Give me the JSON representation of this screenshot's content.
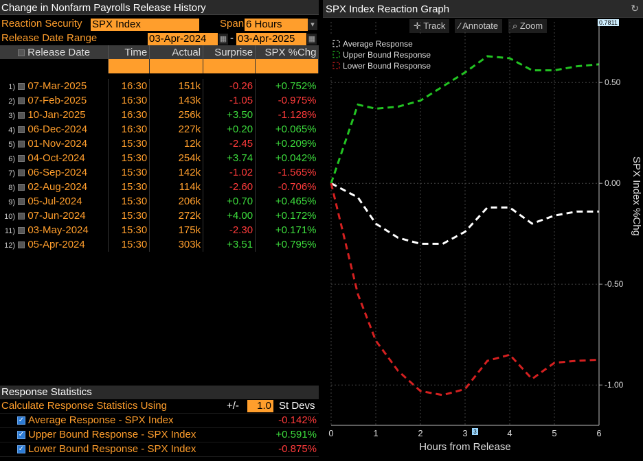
{
  "left": {
    "title": "Change in Nonfarm Payrolls Release History",
    "security_label": "Reaction Security",
    "security_value": "SPX Index",
    "span_label": "Span",
    "span_value": "6 Hours",
    "date_range_label": "Release Date Range",
    "date_from": "03-Apr-2024",
    "date_sep": "-",
    "date_to": "03-Apr-2025",
    "columns": [
      "Release Date",
      "Time",
      "Actual",
      "Surprise",
      "SPX %Chg"
    ],
    "rows": [
      {
        "idx": "1)",
        "date": "07-Mar-2025",
        "time": "16:30",
        "actual": "151k",
        "surprise": "-0.26",
        "chg": "+0.752%"
      },
      {
        "idx": "2)",
        "date": "07-Feb-2025",
        "time": "16:30",
        "actual": "143k",
        "surprise": "-1.05",
        "chg": "-0.975%"
      },
      {
        "idx": "3)",
        "date": "10-Jan-2025",
        "time": "16:30",
        "actual": "256k",
        "surprise": "+3.50",
        "chg": "-1.128%"
      },
      {
        "idx": "4)",
        "date": "06-Dec-2024",
        "time": "16:30",
        "actual": "227k",
        "surprise": "+0.20",
        "chg": "+0.065%"
      },
      {
        "idx": "5)",
        "date": "01-Nov-2024",
        "time": "15:30",
        "actual": "12k",
        "surprise": "-2.45",
        "chg": "+0.209%"
      },
      {
        "idx": "6)",
        "date": "04-Oct-2024",
        "time": "15:30",
        "actual": "254k",
        "surprise": "+3.74",
        "chg": "+0.042%"
      },
      {
        "idx": "7)",
        "date": "06-Sep-2024",
        "time": "15:30",
        "actual": "142k",
        "surprise": "-1.02",
        "chg": "-1.565%"
      },
      {
        "idx": "8)",
        "date": "02-Aug-2024",
        "time": "15:30",
        "actual": "114k",
        "surprise": "-2.60",
        "chg": "-0.706%"
      },
      {
        "idx": "9)",
        "date": "05-Jul-2024",
        "time": "15:30",
        "actual": "206k",
        "surprise": "+0.70",
        "chg": "+0.465%"
      },
      {
        "idx": "10)",
        "date": "07-Jun-2024",
        "time": "15:30",
        "actual": "272k",
        "surprise": "+4.00",
        "chg": "+0.172%"
      },
      {
        "idx": "11)",
        "date": "03-May-2024",
        "time": "15:30",
        "actual": "175k",
        "surprise": "-2.30",
        "chg": "+0.171%"
      },
      {
        "idx": "12)",
        "date": "05-Apr-2024",
        "time": "15:30",
        "actual": "303k",
        "surprise": "+3.51",
        "chg": "+0.795%"
      }
    ],
    "stats": {
      "title": "Response Statistics",
      "calc_label": "Calculate Response Statistics Using",
      "pm": "+/-",
      "stdev_value": "1.0",
      "stdev_label": "St Devs",
      "items": [
        {
          "label": "Average Response - SPX Index",
          "value": "-0.142%"
        },
        {
          "label": "Upper Bound Response - SPX Index",
          "value": "+0.591%"
        },
        {
          "label": "Lower Bound Response - SPX Index",
          "value": "-0.875%"
        }
      ]
    }
  },
  "right": {
    "title": "SPX Index Reaction Graph",
    "tools": [
      "Track",
      "Annotate",
      "Zoom"
    ],
    "current_value": "0.7811",
    "cursor_x_label": "3"
  },
  "chart_data": {
    "type": "line",
    "xlabel": "Hours from Release",
    "ylabel": "SPX Index %Chg",
    "xlim": [
      0,
      6
    ],
    "ylim": [
      -1.2,
      0.8
    ],
    "xticks": [
      "0",
      "1",
      "2",
      "3",
      "4",
      "5",
      "6"
    ],
    "yticks": [
      "0.50",
      "0.00",
      "-0.50",
      "-1.00"
    ],
    "grid": true,
    "legend_position": "top-left",
    "series": [
      {
        "name": "Average Response",
        "color": "#ffffff",
        "x": [
          0,
          0.6,
          1,
          1.5,
          2,
          2.5,
          3,
          3.5,
          4,
          4.5,
          5,
          5.5,
          6
        ],
        "y": [
          0,
          -0.07,
          -0.2,
          -0.27,
          -0.3,
          -0.3,
          -0.24,
          -0.12,
          -0.12,
          -0.2,
          -0.16,
          -0.14,
          -0.14
        ]
      },
      {
        "name": "Upper Bound Response",
        "color": "#22c322",
        "x": [
          0,
          0.6,
          1,
          1.5,
          2,
          2.5,
          3,
          3.5,
          4,
          4.5,
          5,
          5.5,
          6
        ],
        "y": [
          0,
          0.39,
          0.37,
          0.38,
          0.41,
          0.48,
          0.55,
          0.63,
          0.62,
          0.56,
          0.56,
          0.58,
          0.59
        ]
      },
      {
        "name": "Lower Bound Response",
        "color": "#d42020",
        "x": [
          0,
          0.6,
          1,
          1.5,
          2,
          2.5,
          3,
          3.5,
          4,
          4.5,
          5,
          5.5,
          6
        ],
        "y": [
          0,
          -0.55,
          -0.78,
          -0.93,
          -1.03,
          -1.05,
          -1.02,
          -0.88,
          -0.85,
          -0.97,
          -0.89,
          -0.88,
          -0.875
        ]
      }
    ]
  }
}
